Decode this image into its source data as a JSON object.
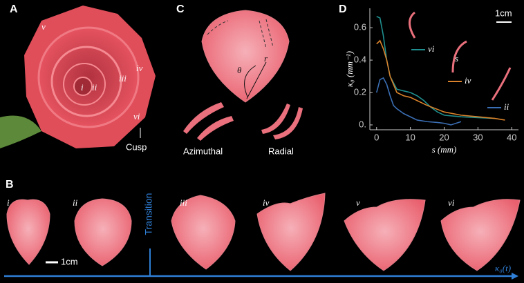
{
  "panels": {
    "a": "A",
    "b": "B",
    "c": "C",
    "d": "D"
  },
  "rose": {
    "labels": [
      "v",
      "i",
      "ii",
      "iii",
      "iv",
      "vi"
    ],
    "cusp": "Cusp"
  },
  "cutting": {
    "theta": "θ",
    "r": "r",
    "azimuthal": "Azimuthal",
    "radial": "Radial"
  },
  "petals": {
    "labels": [
      "i",
      "ii",
      "iii",
      "iv",
      "v",
      "vi"
    ],
    "transition": "Transition",
    "scale": "1cm",
    "axis": "κ₀(t)"
  },
  "chart_data": {
    "type": "line",
    "xlabel": "s (mm)",
    "ylabel": "κ₀ (mm⁻¹)",
    "scale": "1cm",
    "inset_label": "s",
    "xlim": [
      -2,
      42
    ],
    "ylim": [
      -0.03,
      0.72
    ],
    "xticks": [
      0,
      10,
      20,
      30,
      40
    ],
    "yticks": [
      {
        "value": 0,
        "label": "0."
      },
      0.2,
      0.4,
      0.6
    ],
    "series": [
      {
        "name": "vi",
        "color": "#1f8f8f",
        "x": [
          0,
          1,
          2,
          3,
          4,
          6,
          8,
          10,
          12,
          14,
          16,
          18,
          20,
          25,
          30,
          35
        ],
        "values": [
          0.67,
          0.66,
          0.55,
          0.4,
          0.3,
          0.22,
          0.21,
          0.2,
          0.18,
          0.15,
          0.11,
          0.08,
          0.06,
          0.05,
          0.045,
          0.04
        ]
      },
      {
        "name": "iv",
        "color": "#d9822b",
        "x": [
          0,
          1,
          2,
          3,
          4,
          6,
          8,
          10,
          12,
          15,
          20,
          25,
          30,
          35,
          38
        ],
        "values": [
          0.5,
          0.52,
          0.47,
          0.4,
          0.3,
          0.2,
          0.18,
          0.17,
          0.15,
          0.12,
          0.08,
          0.06,
          0.05,
          0.04,
          0.03
        ]
      },
      {
        "name": "ii",
        "color": "#3b6fb5",
        "x": [
          0,
          1,
          2,
          3,
          4,
          5,
          6,
          8,
          10,
          12,
          15,
          18,
          20,
          22,
          25
        ],
        "values": [
          0.2,
          0.28,
          0.29,
          0.25,
          0.18,
          0.12,
          0.1,
          0.07,
          0.05,
          0.03,
          0.02,
          0.015,
          0.01,
          0.0,
          0.02
        ]
      }
    ]
  }
}
